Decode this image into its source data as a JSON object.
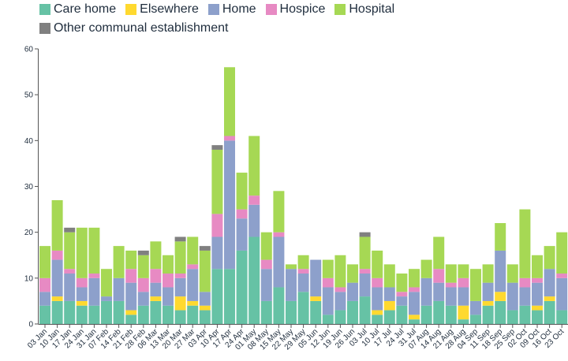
{
  "chart_data": {
    "type": "bar",
    "stacked": true,
    "ylim": [
      0,
      60
    ],
    "yticks": [
      0,
      10,
      20,
      30,
      40,
      50,
      60
    ],
    "grid": false,
    "legend_position": "top-left",
    "categories": [
      "03 Jan",
      "10 Jan",
      "17 Jan",
      "24 Jan",
      "31 Jan",
      "07 Feb",
      "14 Feb",
      "21 Feb",
      "28 Feb",
      "06 Mar",
      "13 Mar",
      "20 Mar",
      "27 Mar",
      "03 Apr",
      "10 Apr",
      "17 Apr",
      "24 Apr",
      "01 May",
      "08 May",
      "15 May",
      "22 May",
      "29 May",
      "05 Jun",
      "12 Jun",
      "19 Jun",
      "26 Jun",
      "03 Jul",
      "10 Jul",
      "17 Jul",
      "24 Jul",
      "31 Jul",
      "07 Aug",
      "14 Aug",
      "21 Aug",
      "28 Aug",
      "04 Sep",
      "11 Sep",
      "18 Sep",
      "25 Sep",
      "02 Oct",
      "09 Oct",
      "16 Oct",
      "23 Oct"
    ],
    "xtick_labels": [
      "03 Jan",
      "10 Jan",
      "17 Jan",
      "24 Jan",
      "31 Jan",
      "07 Feb",
      "14 Feb",
      "21 Feb",
      "28 Feb",
      "06 Mar",
      "13 Mar",
      "20 Mar",
      "27 Mar",
      "03 Apr",
      "10 Apr",
      "17 Apr",
      "24 Apr",
      "01 May",
      "08 May",
      "15 May",
      "22 May",
      "29 May",
      "05 Jun",
      "12 Jun",
      "19 Jun",
      "26 Jun",
      "03 Jul",
      "10 Jul",
      "17 Jul",
      "24 Jul",
      "31 Jul",
      "07 Aug",
      "14 Aug",
      "21 Aug",
      "28 Aug",
      "04 Sep",
      "11 Sep",
      "18 Sep",
      "25 Sep",
      "02 Oct",
      "09 Oct",
      "16 Oct",
      "23 Oct"
    ],
    "series": [
      {
        "name": "Care home",
        "color": "#66c2a5",
        "values": [
          4,
          5,
          5,
          4,
          4,
          5,
          5,
          2,
          4,
          5,
          4,
          3,
          4,
          3,
          12,
          12,
          16,
          19,
          5,
          8,
          5,
          7,
          5,
          2,
          3,
          5,
          6,
          2,
          3,
          4,
          1,
          4,
          5,
          4,
          1,
          2,
          4,
          5,
          3,
          4,
          3,
          5,
          3
        ]
      },
      {
        "name": "Elsewhere",
        "color": "#ffd92f",
        "values": [
          0,
          1,
          0,
          1,
          0,
          0,
          0,
          1,
          0,
          1,
          0,
          3,
          1,
          1,
          0,
          0,
          0,
          0,
          0,
          0,
          0,
          0,
          1,
          0,
          0,
          0,
          0,
          1,
          2,
          0,
          1,
          0,
          0,
          0,
          3,
          0,
          1,
          2,
          0,
          0,
          1,
          1,
          0
        ]
      },
      {
        "name": "Home",
        "color": "#8da0cb",
        "values": [
          3,
          8,
          6,
          3,
          6,
          1,
          5,
          6,
          3,
          3,
          4,
          4,
          7,
          3,
          7,
          28,
          7,
          7,
          7,
          11,
          7,
          4,
          8,
          6,
          4,
          4,
          5,
          5,
          3,
          2,
          5,
          6,
          4,
          4,
          4,
          3,
          4,
          9,
          6,
          4,
          5,
          6,
          7
        ]
      },
      {
        "name": "Hospice",
        "color": "#e78ac3",
        "values": [
          3,
          2,
          1,
          2,
          1,
          0,
          0,
          3,
          3,
          3,
          3,
          1,
          1,
          0,
          5,
          1,
          2,
          2,
          2,
          1,
          0,
          1,
          0,
          2,
          1,
          0,
          1,
          2,
          0,
          1,
          1,
          0,
          3,
          1,
          2,
          0,
          0,
          0,
          0,
          2,
          1,
          0,
          1
        ]
      },
      {
        "name": "Hospital",
        "color": "#a6d854",
        "values": [
          7,
          11,
          8,
          11,
          10,
          6,
          7,
          4,
          5,
          6,
          4,
          7,
          6,
          9,
          14,
          15,
          8,
          13,
          6,
          9,
          1,
          3,
          0,
          4,
          7,
          4,
          7,
          6,
          5,
          4,
          4,
          4,
          7,
          4,
          3,
          7,
          4,
          6,
          4,
          15,
          5,
          5,
          9
        ]
      },
      {
        "name": "Other communal establishment",
        "color": "#808080",
        "values": [
          0,
          0,
          1,
          0,
          0,
          0,
          0,
          0,
          1,
          0,
          0,
          1,
          0,
          1,
          1,
          0,
          0,
          0,
          0,
          0,
          0,
          0,
          0,
          0,
          0,
          0,
          1,
          0,
          0,
          0,
          0,
          0,
          0,
          0,
          0,
          0,
          0,
          0,
          0,
          0,
          0,
          0,
          0
        ]
      }
    ]
  }
}
